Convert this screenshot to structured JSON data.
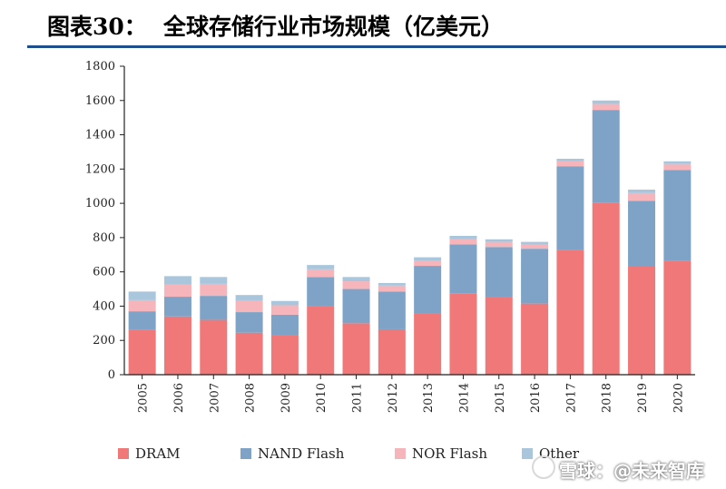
{
  "header": {
    "label": "图表30：",
    "title": "全球存储行业市场规模（亿美元）"
  },
  "colors": {
    "dram": "#f07878",
    "nand": "#7fa3c6",
    "nor": "#f5b5bb",
    "other": "#a9c6dc",
    "rule": "#1f4e8c"
  },
  "watermark": {
    "text": "雪球：@未来智库"
  },
  "chart_data": {
    "type": "bar",
    "stacked": true,
    "title": "全球存储行业市场规模（亿美元）",
    "xlabel": "",
    "ylabel": "",
    "ylim": [
      0,
      1800
    ],
    "yticks": [
      0,
      200,
      400,
      600,
      800,
      1000,
      1200,
      1400,
      1600,
      1800
    ],
    "categories": [
      "2005",
      "2006",
      "2007",
      "2008",
      "2009",
      "2010",
      "2011",
      "2012",
      "2013",
      "2014",
      "2015",
      "2016",
      "2017",
      "2018",
      "2019",
      "2020"
    ],
    "series": [
      {
        "name": "DRAM",
        "color_key": "dram",
        "values": [
          260,
          340,
          320,
          245,
          230,
          400,
          300,
          265,
          355,
          475,
          455,
          415,
          730,
          1005,
          630,
          665
        ]
      },
      {
        "name": "NAND Flash",
        "color_key": "nand",
        "values": [
          110,
          115,
          140,
          120,
          120,
          170,
          200,
          220,
          280,
          285,
          290,
          320,
          485,
          540,
          385,
          530
        ]
      },
      {
        "name": "NOR Flash",
        "color_key": "nor",
        "values": [
          65,
          70,
          70,
          65,
          55,
          45,
          45,
          35,
          30,
          30,
          30,
          25,
          30,
          35,
          45,
          35
        ]
      },
      {
        "name": "Other",
        "color_key": "other",
        "values": [
          50,
          50,
          40,
          35,
          25,
          25,
          25,
          15,
          20,
          20,
          15,
          15,
          15,
          20,
          20,
          15
        ]
      }
    ],
    "legend_position": "bottom"
  }
}
